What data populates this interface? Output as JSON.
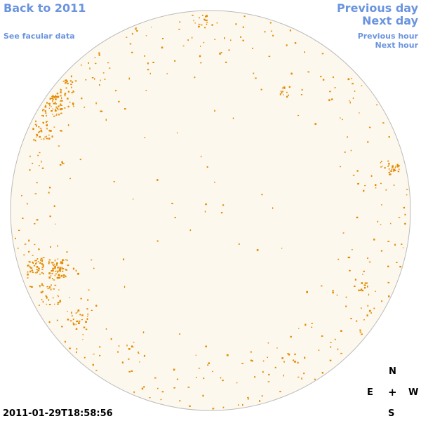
{
  "nav": {
    "back_label": "Back to 2011",
    "facular_label": "See facular data",
    "prev_day_label": "Previous day",
    "next_day_label": "Next day",
    "prev_hour_label": "Previous hour",
    "next_hour_label": "Next hour"
  },
  "timestamp": "2011-01-29T18:58:56",
  "compass": {
    "north": "N",
    "east": "E",
    "center": "+",
    "west": "W",
    "south": "S"
  },
  "colors": {
    "link": "#6a94de",
    "disk_fill": "#fdf8ed",
    "disk_border": "#bbbbbb",
    "feature": "#e28a00"
  }
}
